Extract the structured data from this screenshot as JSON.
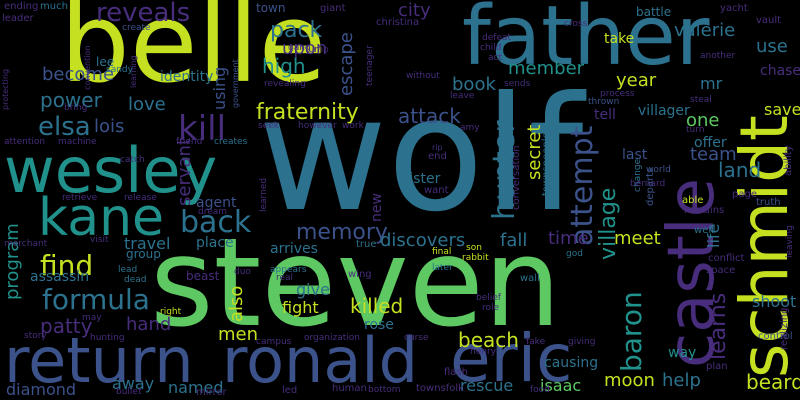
{
  "palette": {
    "background": "#000000",
    "yellow": "#c5e021",
    "lime": "#a2da37",
    "green": "#5ec962",
    "teal": "#21918c",
    "blue": "#2c728e",
    "indigo": "#3b528b",
    "violet": "#472d7b",
    "purple": "#440154"
  },
  "words": [
    "wolf",
    "steven",
    "belle",
    "father",
    "schmidt",
    "wesley",
    "return",
    "ronald",
    "eric",
    "castle",
    "kane",
    "formula",
    "kill",
    "reveals",
    "elsa",
    "back",
    "find",
    "fraternity",
    "attack",
    "hunter",
    "attempt",
    "memory",
    "secret",
    "baron",
    "land",
    "team",
    "village",
    "beach",
    "discovers",
    "fall",
    "book",
    "high",
    "pack",
    "upon",
    "power",
    "lois",
    "love",
    "year",
    "member",
    "valerie",
    "city",
    "use",
    "take",
    "beard",
    "moon",
    "help",
    "meet",
    "time",
    "killed",
    "men",
    "also",
    "give",
    "fight",
    "hand",
    "patty",
    "program",
    "assassin",
    "named",
    "away",
    "diamond",
    "rescue",
    "isaac",
    "learns",
    "life",
    "shoot",
    "save",
    "one",
    "mr",
    "offer",
    "last",
    "way",
    "escape",
    "become",
    "using",
    "identity",
    "servant",
    "agent",
    "place",
    "arrives",
    "rose",
    "causing",
    "villager",
    "town",
    "giant",
    "christina",
    "battle",
    "yacht",
    "vault",
    "chase",
    "tell",
    "lee",
    "sandy",
    "create",
    "government",
    "leader",
    "much",
    "ending",
    "protecting",
    "convention",
    "sister",
    "new",
    "true",
    "magic",
    "want",
    "end",
    "rip",
    "conversation",
    "townspeople",
    "process",
    "thrown",
    "steal",
    "turn",
    "world",
    "change",
    "departs",
    "truth",
    "page",
    "able",
    "remains",
    "well",
    "conflict",
    "space",
    "realizing",
    "control",
    "however",
    "work",
    "seek",
    "revealing",
    "attention",
    "machine",
    "catch",
    "friend",
    "creates",
    "retrieve",
    "release",
    "merchant",
    "visit",
    "travel",
    "group",
    "lead",
    "dead",
    "beast",
    "duo",
    "appears",
    "real",
    "wing",
    "son",
    "rabbit",
    "final",
    "god",
    "later",
    "wall",
    "belief",
    "role",
    "henry",
    "flash",
    "townsfolk",
    "fake",
    "giving",
    "plan",
    "human",
    "bottom",
    "food",
    "led",
    "organization",
    "curse",
    "hunting",
    "mirror",
    "bullet",
    "story",
    "right",
    "may",
    "campus",
    "dream",
    "learned",
    "amy",
    "sends",
    "child",
    "act",
    "defeat",
    "without",
    "leave",
    "bring",
    "teenager",
    "gang",
    "jump",
    "another",
    "ability",
    "bernard",
    "leaving",
    "learning",
    "cross"
  ]
}
